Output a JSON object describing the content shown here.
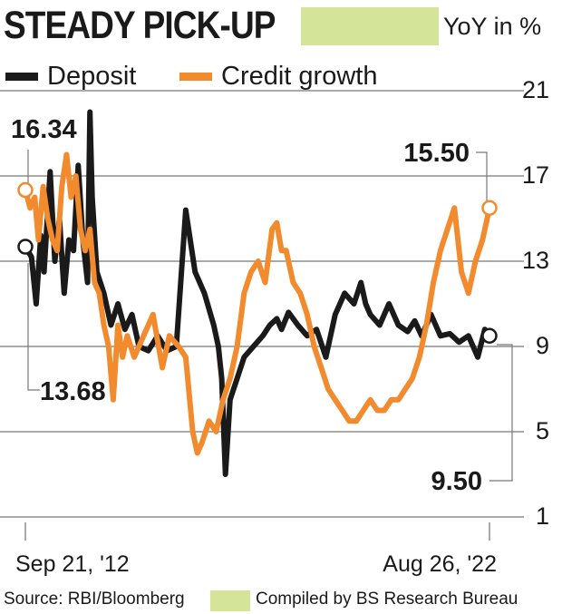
{
  "header": {
    "title": "STEADY PICK-UP",
    "unit_label": "YoY in %"
  },
  "footer": {
    "source": "Source: RBI/Bloomberg",
    "compiled": "Compiled by BS Research Bureau"
  },
  "colors": {
    "deposit": "#1a1a1a",
    "credit": "#f28a2e",
    "accent_band": "#d4e59a",
    "grid": "#555555"
  },
  "chart_data": {
    "type": "line",
    "title": "STEADY PICK-UP",
    "ylabel": "YoY in %",
    "ylim": [
      1,
      21
    ],
    "y_ticks": [
      "21",
      "17",
      "13",
      "9",
      "5",
      "1"
    ],
    "y_tick_values": [
      21,
      17,
      13,
      9,
      5,
      1
    ],
    "x_tick_labels": [
      "Sep 21, '12",
      "Aug 26, '22"
    ],
    "grid": true,
    "legend_position": "top-left",
    "series": [
      {
        "name": "Deposit",
        "color": "#1a1a1a",
        "x": [
          2012.72,
          2012.85,
          2012.95,
          2013.05,
          2013.12,
          2013.25,
          2013.35,
          2013.45,
          2013.55,
          2013.65,
          2013.75,
          2013.85,
          2013.95,
          2014.05,
          2014.1,
          2014.15,
          2014.25,
          2014.4,
          2014.55,
          2014.7,
          2014.85,
          2015.0,
          2015.15,
          2015.35,
          2015.55,
          2015.75,
          2015.95,
          2016.15,
          2016.35,
          2016.55,
          2016.75,
          2016.85,
          2016.92,
          2017.0,
          2017.1,
          2017.25,
          2017.4,
          2017.6,
          2017.8,
          2017.95,
          2018.1,
          2018.2,
          2018.35,
          2018.55,
          2018.75,
          2018.95,
          2019.15,
          2019.35,
          2019.55,
          2019.75,
          2019.9,
          2020.0,
          2020.1,
          2020.3,
          2020.5,
          2020.7,
          2020.9,
          2021.05,
          2021.2,
          2021.4,
          2021.6,
          2021.8,
          2022.0,
          2022.2,
          2022.4,
          2022.55,
          2022.65
        ],
        "values": [
          13.68,
          13.2,
          11.0,
          14.2,
          12.5,
          17.2,
          13.0,
          15.0,
          11.5,
          14.0,
          13.5,
          17.5,
          14.0,
          12.0,
          20.0,
          16.0,
          12.5,
          11.5,
          10.0,
          11.0,
          9.8,
          10.5,
          9.0,
          8.8,
          9.5,
          8.8,
          9.0,
          15.4,
          12.5,
          11.5,
          10.0,
          9.0,
          7.5,
          3.0,
          6.5,
          7.5,
          8.5,
          9.0,
          9.5,
          10.0,
          10.3,
          9.8,
          10.6,
          10.0,
          9.5,
          9.8,
          8.5,
          10.5,
          11.5,
          11.0,
          12.0,
          11.0,
          10.5,
          10.0,
          11.0,
          10.0,
          9.7,
          10.2,
          9.5,
          10.5,
          9.5,
          9.6,
          9.2,
          9.5,
          8.5,
          9.8,
          9.5
        ]
      },
      {
        "name": "Credit growth",
        "color": "#f28a2e",
        "x": [
          2012.72,
          2012.82,
          2012.92,
          2013.0,
          2013.1,
          2013.2,
          2013.3,
          2013.4,
          2013.5,
          2013.6,
          2013.7,
          2013.8,
          2013.9,
          2014.0,
          2014.1,
          2014.2,
          2014.3,
          2014.4,
          2014.5,
          2014.6,
          2014.7,
          2014.8,
          2014.9,
          2015.05,
          2015.25,
          2015.45,
          2015.65,
          2015.8,
          2016.0,
          2016.15,
          2016.3,
          2016.4,
          2016.5,
          2016.65,
          2016.8,
          2016.95,
          2017.1,
          2017.25,
          2017.4,
          2017.55,
          2017.7,
          2017.85,
          2018.0,
          2018.1,
          2018.2,
          2018.3,
          2018.45,
          2018.6,
          2018.75,
          2018.9,
          2019.05,
          2019.2,
          2019.35,
          2019.5,
          2019.65,
          2019.8,
          2019.95,
          2020.1,
          2020.25,
          2020.4,
          2020.55,
          2020.7,
          2020.85,
          2021.0,
          2021.15,
          2021.3,
          2021.45,
          2021.6,
          2021.75,
          2021.9,
          2022.05,
          2022.2,
          2022.35,
          2022.5,
          2022.65
        ],
        "values": [
          16.34,
          15.5,
          16.0,
          14.0,
          16.5,
          15.0,
          14.0,
          13.5,
          16.5,
          18.0,
          16.0,
          17.0,
          14.5,
          13.5,
          14.5,
          12.0,
          11.5,
          10.0,
          9.0,
          6.5,
          10.0,
          8.5,
          9.5,
          8.5,
          9.5,
          10.5,
          8.0,
          9.5,
          9.0,
          8.5,
          5.0,
          4.0,
          4.5,
          5.5,
          5.0,
          6.5,
          7.5,
          9.0,
          11.5,
          12.5,
          13.0,
          12.0,
          14.5,
          14.8,
          13.5,
          13.5,
          12.0,
          11.5,
          10.5,
          9.0,
          8.0,
          7.0,
          6.5,
          6.0,
          5.5,
          5.5,
          6.0,
          6.5,
          6.0,
          6.0,
          6.5,
          6.5,
          7.0,
          7.5,
          8.5,
          10.0,
          12.0,
          13.5,
          14.5,
          15.5,
          12.5,
          11.5,
          13.0,
          14.0,
          15.5
        ]
      }
    ],
    "annotations": [
      {
        "label": "16.34",
        "series": "Credit growth",
        "point": "start",
        "x": 2012.72,
        "y": 16.34
      },
      {
        "label": "13.68",
        "series": "Deposit",
        "point": "start",
        "x": 2012.72,
        "y": 13.68
      },
      {
        "label": "15.50",
        "series": "Credit growth",
        "point": "end",
        "x": 2022.65,
        "y": 15.5
      },
      {
        "label": "9.50",
        "series": "Deposit",
        "point": "end",
        "x": 2022.65,
        "y": 9.5
      }
    ]
  }
}
